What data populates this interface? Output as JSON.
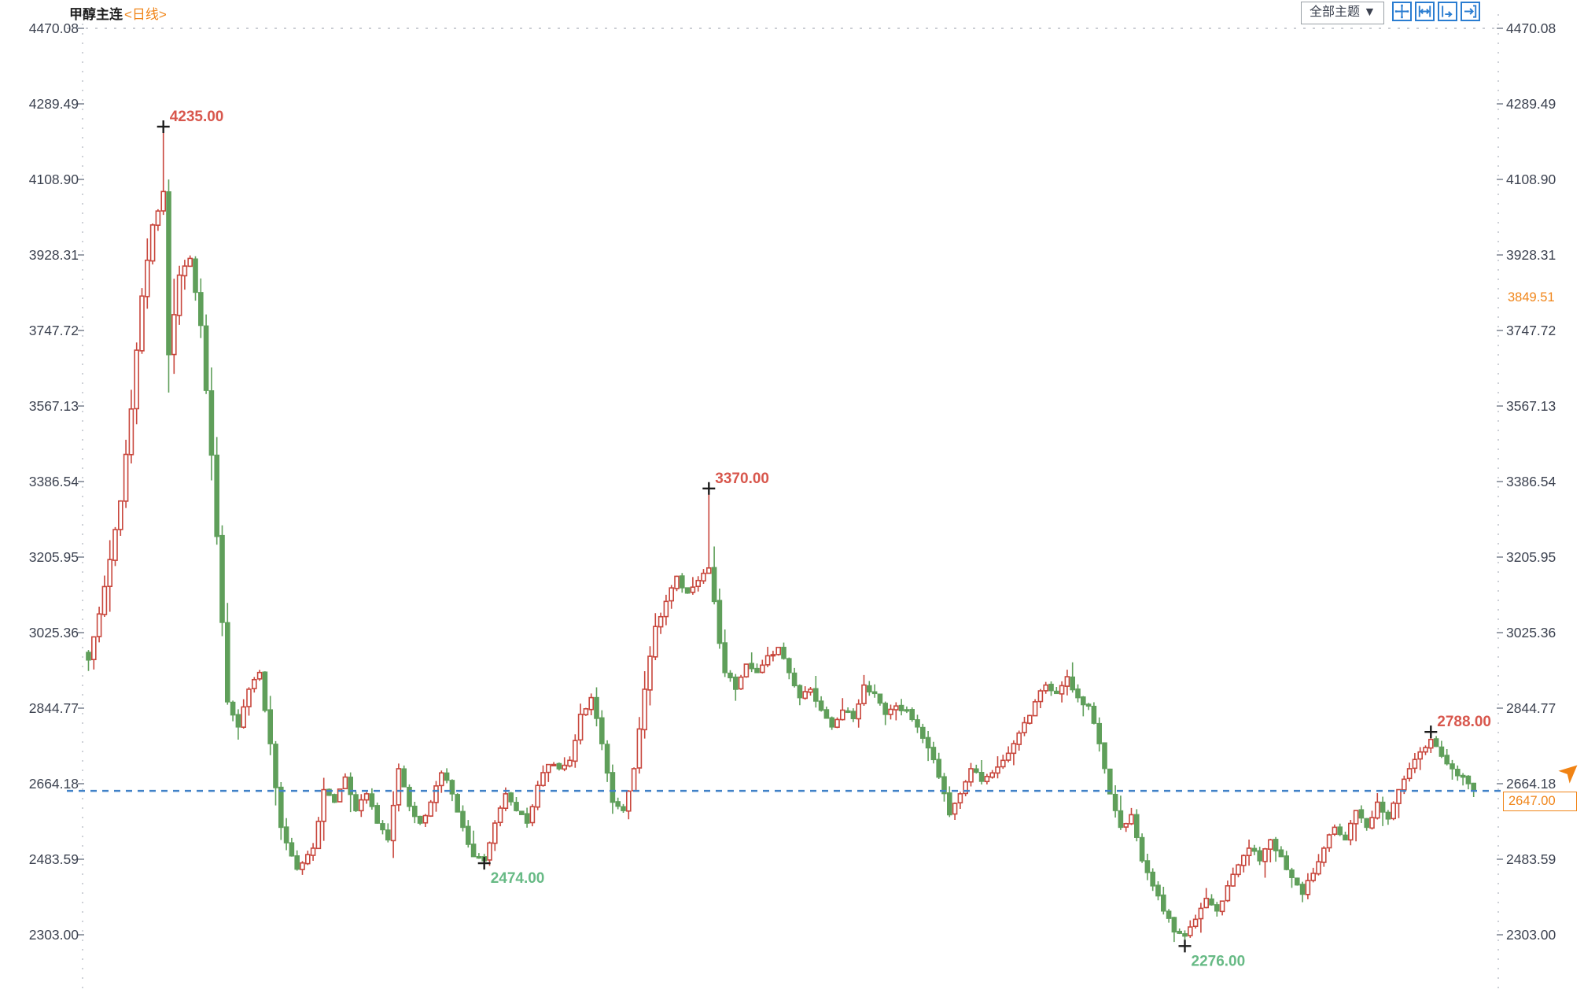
{
  "header": {
    "title": "甲醇主连",
    "period": "<日线>"
  },
  "toolbar": {
    "theme_button": "全部主题 ▼",
    "icons": [
      {
        "name": "pan-crosshair-icon"
      },
      {
        "name": "fit-range-icon"
      },
      {
        "name": "scroll-right-icon"
      },
      {
        "name": "jump-latest-icon"
      }
    ]
  },
  "colors": {
    "up_candle": "#c8463c",
    "down_candle": "#5f9f5a",
    "annotation_high": "#d8574d",
    "annotation_low": "#67ba85",
    "orange_accent": "#f08519",
    "last_price_line": "#4182c8",
    "axis_text": "#3c4250"
  },
  "chart_data": {
    "type": "candlestick",
    "instrument": "甲醇主连",
    "interval": "日线",
    "style": {
      "up": "hollow-red",
      "down": "solid-green",
      "grid": "dotted-borders-only"
    },
    "y_axis": {
      "min": 2303.0,
      "max": 4470.08,
      "ticks": [
        "4470.08",
        "4289.49",
        "4108.90",
        "3928.31",
        "3747.72",
        "3567.13",
        "3386.54",
        "3205.95",
        "3025.36",
        "2844.77",
        "2664.18",
        "2483.59",
        "2303.00"
      ]
    },
    "price_tags": [
      {
        "value": "3849.51",
        "price": 3849.51,
        "boxed": false
      },
      {
        "value": "2647.00",
        "price": 2647.0,
        "boxed": true
      }
    ],
    "last_price": 2647.0,
    "last_price_line": 2647.0,
    "annotations": [
      {
        "label": "4235.00",
        "price": 4235.0,
        "index": 14,
        "kind": "high"
      },
      {
        "label": "3370.00",
        "price": 3370.0,
        "index": 116,
        "kind": "high"
      },
      {
        "label": "2788.00",
        "price": 2788.0,
        "index": 251,
        "kind": "high"
      },
      {
        "label": "2474.00",
        "price": 2474.0,
        "index": 74,
        "kind": "low"
      },
      {
        "label": "2276.00",
        "price": 2276.0,
        "index": 205,
        "kind": "low"
      }
    ],
    "candles": {
      "count": 260,
      "close_anchors": [
        [
          0,
          2960
        ],
        [
          2,
          3070
        ],
        [
          4,
          3200
        ],
        [
          6,
          3340
        ],
        [
          8,
          3560
        ],
        [
          10,
          3830
        ],
        [
          12,
          4000
        ],
        [
          14,
          4080
        ],
        [
          15,
          3690
        ],
        [
          17,
          3880
        ],
        [
          19,
          3920
        ],
        [
          21,
          3760
        ],
        [
          23,
          3450
        ],
        [
          25,
          3050
        ],
        [
          26,
          2860
        ],
        [
          28,
          2800
        ],
        [
          30,
          2890
        ],
        [
          32,
          2930
        ],
        [
          34,
          2760
        ],
        [
          36,
          2560
        ],
        [
          39,
          2460
        ],
        [
          42,
          2510
        ],
        [
          44,
          2650
        ],
        [
          46,
          2620
        ],
        [
          48,
          2680
        ],
        [
          50,
          2600
        ],
        [
          52,
          2640
        ],
        [
          54,
          2570
        ],
        [
          56,
          2530
        ],
        [
          58,
          2700
        ],
        [
          60,
          2610
        ],
        [
          62,
          2570
        ],
        [
          64,
          2620
        ],
        [
          66,
          2690
        ],
        [
          68,
          2640
        ],
        [
          70,
          2560
        ],
        [
          72,
          2490
        ],
        [
          74,
          2480
        ],
        [
          76,
          2570
        ],
        [
          78,
          2640
        ],
        [
          80,
          2600
        ],
        [
          82,
          2570
        ],
        [
          84,
          2660
        ],
        [
          86,
          2710
        ],
        [
          88,
          2700
        ],
        [
          90,
          2720
        ],
        [
          92,
          2830
        ],
        [
          94,
          2870
        ],
        [
          96,
          2760
        ],
        [
          98,
          2620
        ],
        [
          100,
          2600
        ],
        [
          102,
          2700
        ],
        [
          104,
          2890
        ],
        [
          106,
          3040
        ],
        [
          108,
          3100
        ],
        [
          110,
          3160
        ],
        [
          112,
          3120
        ],
        [
          114,
          3150
        ],
        [
          116,
          3180
        ],
        [
          117,
          3100
        ],
        [
          118,
          3000
        ],
        [
          119,
          2930
        ],
        [
          121,
          2890
        ],
        [
          123,
          2950
        ],
        [
          125,
          2930
        ],
        [
          127,
          2970
        ],
        [
          129,
          2990
        ],
        [
          131,
          2930
        ],
        [
          133,
          2870
        ],
        [
          135,
          2890
        ],
        [
          137,
          2840
        ],
        [
          139,
          2800
        ],
        [
          141,
          2840
        ],
        [
          143,
          2820
        ],
        [
          145,
          2900
        ],
        [
          147,
          2880
        ],
        [
          149,
          2830
        ],
        [
          151,
          2850
        ],
        [
          153,
          2840
        ],
        [
          155,
          2800
        ],
        [
          157,
          2750
        ],
        [
          159,
          2680
        ],
        [
          161,
          2590
        ],
        [
          163,
          2640
        ],
        [
          165,
          2700
        ],
        [
          167,
          2670
        ],
        [
          169,
          2690
        ],
        [
          171,
          2720
        ],
        [
          173,
          2760
        ],
        [
          175,
          2810
        ],
        [
          177,
          2860
        ],
        [
          179,
          2900
        ],
        [
          181,
          2880
        ],
        [
          183,
          2920
        ],
        [
          185,
          2870
        ],
        [
          187,
          2850
        ],
        [
          189,
          2760
        ],
        [
          191,
          2640
        ],
        [
          193,
          2560
        ],
        [
          195,
          2590
        ],
        [
          197,
          2480
        ],
        [
          199,
          2420
        ],
        [
          201,
          2360
        ],
        [
          203,
          2310
        ],
        [
          205,
          2300
        ],
        [
          207,
          2340
        ],
        [
          209,
          2390
        ],
        [
          211,
          2360
        ],
        [
          213,
          2420
        ],
        [
          215,
          2470
        ],
        [
          217,
          2510
        ],
        [
          219,
          2480
        ],
        [
          221,
          2530
        ],
        [
          223,
          2490
        ],
        [
          225,
          2440
        ],
        [
          227,
          2400
        ],
        [
          229,
          2450
        ],
        [
          231,
          2510
        ],
        [
          233,
          2560
        ],
        [
          235,
          2530
        ],
        [
          237,
          2600
        ],
        [
          239,
          2560
        ],
        [
          241,
          2620
        ],
        [
          243,
          2580
        ],
        [
          245,
          2650
        ],
        [
          247,
          2700
        ],
        [
          249,
          2740
        ],
        [
          251,
          2770
        ],
        [
          253,
          2730
        ],
        [
          255,
          2700
        ],
        [
          257,
          2680
        ],
        [
          259,
          2647
        ]
      ],
      "forced_high": [
        [
          14,
          4235
        ],
        [
          116,
          3370
        ],
        [
          251,
          2788
        ]
      ],
      "forced_low": [
        [
          74,
          2474
        ],
        [
          205,
          2276
        ]
      ]
    }
  }
}
